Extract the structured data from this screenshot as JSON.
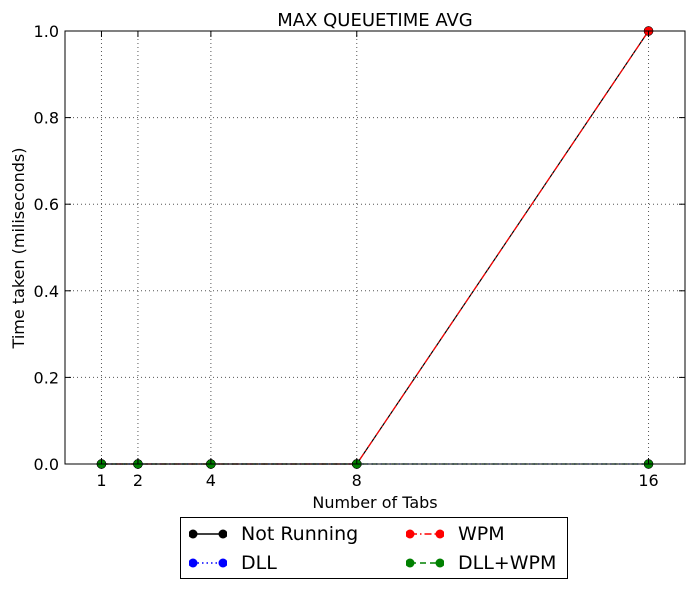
{
  "chart_data": {
    "type": "line",
    "title": "MAX QUEUETIME AVG",
    "xlabel": "Number of Tabs",
    "ylabel": "Time taken (miliseconds)",
    "x": [
      1,
      2,
      4,
      8,
      16
    ],
    "xticks": [
      "1",
      "2",
      "4",
      "8",
      "16"
    ],
    "yticks": [
      "0.0",
      "0.2",
      "0.4",
      "0.6",
      "0.8",
      "1.0"
    ],
    "xlim": [
      0,
      17
    ],
    "ylim": [
      0,
      1
    ],
    "grid": true,
    "legend_position": "bottom-center",
    "series": [
      {
        "name": "Not Running",
        "values": [
          0,
          0,
          0,
          0,
          1
        ],
        "color": "#000000",
        "linestyle": "solid"
      },
      {
        "name": "DLL",
        "values": [
          0,
          0,
          0,
          0,
          0
        ],
        "color": "#0000ff",
        "linestyle": "dotted"
      },
      {
        "name": "WPM",
        "values": [
          0,
          0,
          0,
          0,
          1
        ],
        "color": "#ff0000",
        "linestyle": "dashdot"
      },
      {
        "name": "DLL+WPM",
        "values": [
          0,
          0,
          0,
          0,
          0
        ],
        "color": "#008000",
        "linestyle": "dashed"
      }
    ]
  }
}
